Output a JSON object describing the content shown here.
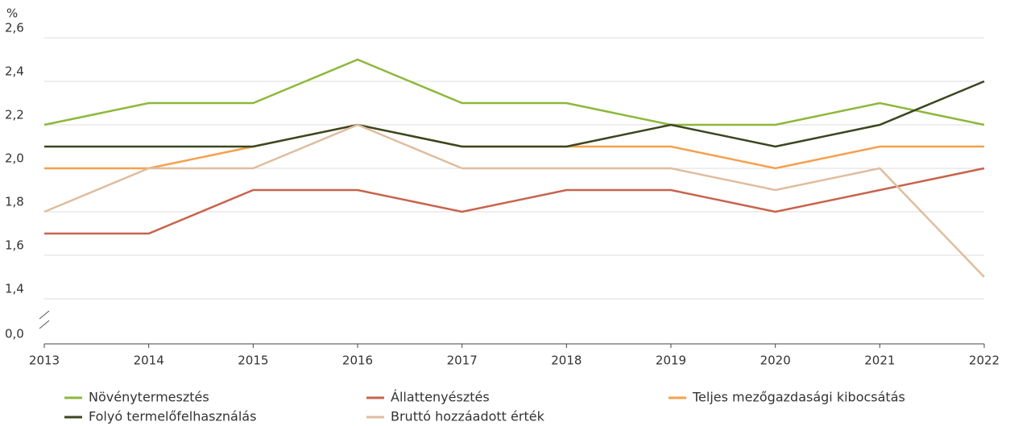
{
  "chart_data": {
    "type": "line",
    "y_unit": "%",
    "categories": [
      "2013",
      "2014",
      "2015",
      "2016",
      "2017",
      "2018",
      "2019",
      "2020",
      "2021",
      "2022"
    ],
    "series": [
      {
        "name": "Növénytermesztés",
        "color": "#8db83a",
        "values": [
          2.2,
          2.3,
          2.3,
          2.5,
          2.3,
          2.3,
          2.2,
          2.2,
          2.3,
          2.2
        ]
      },
      {
        "name": "Állattenyésztés",
        "color": "#c8634c",
        "values": [
          1.7,
          1.7,
          1.9,
          1.9,
          1.8,
          1.9,
          1.9,
          1.8,
          1.9,
          2.0
        ]
      },
      {
        "name": "Teljes mezőgazdasági kibocsátás",
        "color": "#f5a04c",
        "values": [
          2.0,
          2.0,
          2.1,
          2.2,
          2.1,
          2.1,
          2.1,
          2.0,
          2.1,
          2.1
        ]
      },
      {
        "name": "Folyó termelőfelhasználás",
        "color": "#3b4620",
        "values": [
          2.1,
          2.1,
          2.1,
          2.2,
          2.1,
          2.1,
          2.2,
          2.1,
          2.2,
          2.4
        ]
      },
      {
        "name": "Bruttó hozzáadott érték",
        "color": "#dfbd9e",
        "values": [
          1.8,
          2.0,
          2.0,
          2.2,
          2.0,
          2.0,
          2.0,
          1.9,
          2.0,
          1.5
        ]
      }
    ],
    "ylim": [
      0,
      2.6
    ],
    "axis_break": {
      "from": 0,
      "to": 1.4
    },
    "yticks": [
      {
        "value": 0,
        "label": "0,0"
      },
      {
        "value": 1.4,
        "label": "1,4"
      },
      {
        "value": 1.6,
        "label": "1,6"
      },
      {
        "value": 1.8,
        "label": "1,8"
      },
      {
        "value": 2.0,
        "label": "2,0"
      },
      {
        "value": 2.2,
        "label": "2,2"
      },
      {
        "value": 2.4,
        "label": "2,4"
      },
      {
        "value": 2.6,
        "label": "2,6"
      }
    ],
    "grid": true
  }
}
